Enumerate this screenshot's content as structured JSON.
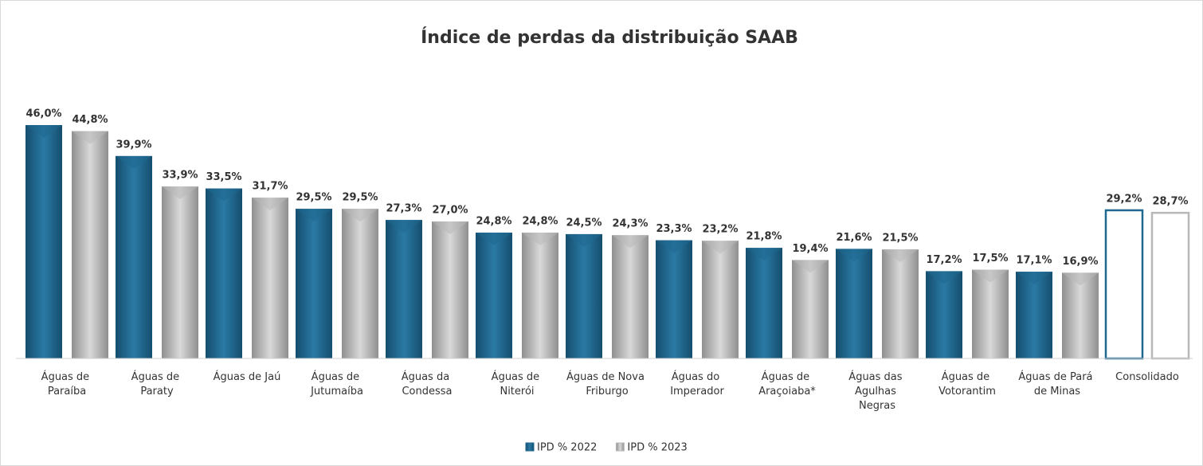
{
  "chart_data": {
    "type": "bar",
    "title": "Índice de perdas da distribuição SAAB",
    "categories": [
      "Águas de Paraíba",
      "Águas de Paraty",
      "Águas de Jaú",
      "Águas de Jutumaíba",
      "Águas da Condessa",
      "Águas de Niterói",
      "Águas de Nova Friburgo",
      "Águas do Imperador",
      "Águas de Araçoiaba*",
      "Águas das Agulhas Negras",
      "Águas de Votorantim",
      "Águas de Pará de Minas",
      "Consolidado"
    ],
    "series": [
      {
        "name": "IPD % 2022",
        "color": "#1f6890",
        "values": [
          46.0,
          39.9,
          33.5,
          29.5,
          27.3,
          24.8,
          24.5,
          23.3,
          21.8,
          21.6,
          17.2,
          17.1,
          29.2
        ],
        "value_labels": [
          "46,0%",
          "39,9%",
          "33,5%",
          "29,5%",
          "27,3%",
          "24,8%",
          "24,5%",
          "23,3%",
          "21,8%",
          "21,6%",
          "17,2%",
          "17,1%",
          "29,2%"
        ]
      },
      {
        "name": "IPD % 2023",
        "color": "#b8b8b8",
        "values": [
          44.8,
          33.9,
          31.7,
          29.5,
          27.0,
          24.8,
          24.3,
          23.2,
          19.4,
          21.5,
          17.5,
          16.9,
          28.7
        ],
        "value_labels": [
          "44,8%",
          "33,9%",
          "31,7%",
          "29,5%",
          "27,0%",
          "24,8%",
          "24,3%",
          "23,2%",
          "19,4%",
          "21,5%",
          "17,5%",
          "16,9%",
          "28,7%"
        ]
      }
    ],
    "ylim": [
      0,
      50
    ],
    "legend": "bottom"
  }
}
